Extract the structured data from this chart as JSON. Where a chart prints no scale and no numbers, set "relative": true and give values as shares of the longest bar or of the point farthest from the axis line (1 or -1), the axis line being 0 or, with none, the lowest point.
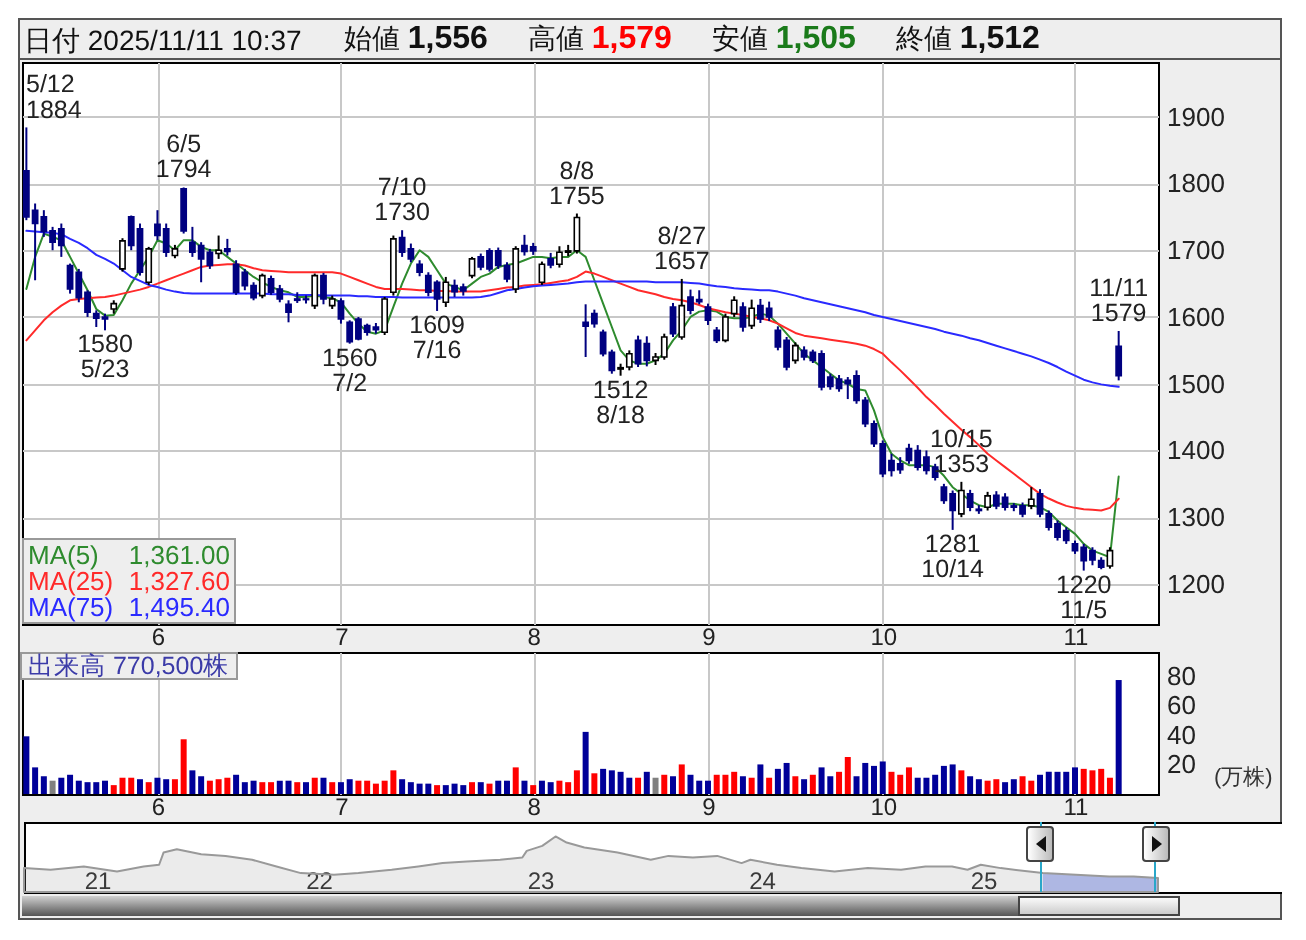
{
  "chart_data": [
    {
      "type": "candlestick",
      "title": "日付 2025/11/11 10:37",
      "subtitle": "始値 1,556 高値 1,579 安値 1,505 終値 1,512",
      "categories": [
        null,
        null,
        null,
        null,
        null,
        null,
        null,
        null,
        null,
        null,
        null,
        null,
        null,
        null,
        null,
        "6",
        null,
        null,
        null,
        null,
        null,
        null,
        null,
        null,
        null,
        null,
        null,
        null,
        null,
        null,
        null,
        null,
        null,
        null,
        null,
        null,
        "7",
        null,
        null,
        null,
        null,
        null,
        null,
        null,
        null,
        null,
        null,
        null,
        null,
        null,
        null,
        null,
        null,
        null,
        null,
        null,
        null,
        null,
        "8",
        null,
        null,
        null,
        null,
        null,
        null,
        null,
        null,
        null,
        null,
        null,
        null,
        null,
        null,
        null,
        null,
        null,
        null,
        null,
        "9",
        null,
        null,
        null,
        null,
        null,
        null,
        null,
        null,
        null,
        null,
        null,
        null,
        null,
        null,
        null,
        null,
        null,
        null,
        null,
        "10",
        null,
        null,
        null,
        null,
        null,
        null,
        null,
        null,
        null,
        null,
        null,
        null,
        null,
        null,
        null,
        null,
        null,
        null,
        null,
        null,
        null,
        "11",
        null,
        null,
        null,
        null,
        null
      ],
      "ohlc": [
        [
          1819,
          1884,
          1745,
          1750
        ],
        [
          1760,
          1770,
          1655,
          1740
        ],
        [
          1750,
          1760,
          1720,
          1728
        ],
        [
          1729,
          1735,
          1700,
          1712
        ],
        [
          1732,
          1740,
          1690,
          1707
        ],
        [
          1677,
          1680,
          1635,
          1642
        ],
        [
          1667,
          1672,
          1622,
          1629
        ],
        [
          1637,
          1640,
          1600,
          1607
        ],
        [
          1605,
          1610,
          1585,
          1598
        ],
        [
          1600,
          1605,
          1580,
          1597
        ],
        [
          1612,
          1625,
          1605,
          1620
        ],
        [
          1672,
          1718,
          1668,
          1714
        ],
        [
          1750,
          1752,
          1700,
          1707
        ],
        [
          1732,
          1740,
          1662,
          1667
        ],
        [
          1652,
          1705,
          1648,
          1702
        ],
        [
          1739,
          1760,
          1715,
          1722
        ],
        [
          1732,
          1740,
          1690,
          1697
        ],
        [
          1692,
          1708,
          1688,
          1702
        ],
        [
          1792,
          1794,
          1725,
          1729
        ],
        [
          1712,
          1735,
          1690,
          1697
        ],
        [
          1707,
          1712,
          1652,
          1687
        ],
        [
          1697,
          1702,
          1672,
          1677
        ],
        [
          1695,
          1722,
          1687,
          1700
        ],
        [
          1702,
          1717,
          1692,
          1698
        ],
        [
          1679,
          1685,
          1633,
          1637
        ],
        [
          1667,
          1672,
          1640,
          1647
        ],
        [
          1647,
          1652,
          1625,
          1629
        ],
        [
          1632,
          1665,
          1628,
          1662
        ],
        [
          1657,
          1662,
          1633,
          1637
        ],
        [
          1642,
          1648,
          1622,
          1627
        ],
        [
          1619,
          1625,
          1592,
          1607
        ],
        [
          1627,
          1637,
          1621,
          1625
        ],
        [
          1627,
          1632,
          1620,
          1626
        ],
        [
          1617,
          1665,
          1612,
          1662
        ],
        [
          1662,
          1666,
          1619,
          1627
        ],
        [
          1617,
          1632,
          1612,
          1627
        ],
        [
          1624,
          1628,
          1590,
          1597
        ],
        [
          1592,
          1595,
          1560,
          1563
        ],
        [
          1597,
          1600,
          1565,
          1567
        ],
        [
          1587,
          1590,
          1572,
          1577
        ],
        [
          1585,
          1591,
          1575,
          1581
        ],
        [
          1577,
          1630,
          1573,
          1627
        ],
        [
          1637,
          1722,
          1632,
          1717
        ],
        [
          1719,
          1730,
          1690,
          1697
        ],
        [
          1702,
          1710,
          1682,
          1687
        ],
        [
          1679,
          1685,
          1661,
          1667
        ],
        [
          1662,
          1667,
          1631,
          1637
        ],
        [
          1652,
          1655,
          1609,
          1627
        ],
        [
          1622,
          1660,
          1615,
          1652
        ],
        [
          1647,
          1656,
          1630,
          1638
        ],
        [
          1645,
          1650,
          1632,
          1639
        ],
        [
          1662,
          1690,
          1658,
          1687
        ],
        [
          1690,
          1695,
          1670,
          1675
        ],
        [
          1699,
          1703,
          1668,
          1672
        ],
        [
          1699,
          1704,
          1672,
          1677
        ],
        [
          1677,
          1682,
          1652,
          1657
        ],
        [
          1642,
          1706,
          1636,
          1702
        ],
        [
          1707,
          1723,
          1692,
          1698
        ],
        [
          1705,
          1711,
          1693,
          1699
        ],
        [
          1652,
          1683,
          1648,
          1679
        ],
        [
          1687,
          1696,
          1673,
          1678
        ],
        [
          1679,
          1706,
          1674,
          1697
        ],
        [
          1697,
          1708,
          1691,
          1699
        ],
        [
          1699,
          1755,
          1695,
          1749
        ],
        [
          1592,
          1619,
          1540,
          1586
        ],
        [
          1605,
          1611,
          1584,
          1590
        ],
        [
          1577,
          1581,
          1541,
          1545
        ],
        [
          1547,
          1551,
          1515,
          1520
        ],
        [
          1522,
          1530,
          1512,
          1524
        ],
        [
          1525,
          1550,
          1520,
          1545
        ],
        [
          1565,
          1572,
          1525,
          1530
        ],
        [
          1560,
          1571,
          1526,
          1535
        ],
        [
          1535,
          1546,
          1528,
          1540
        ],
        [
          1540,
          1575,
          1536,
          1570
        ],
        [
          1615,
          1621,
          1570,
          1575
        ],
        [
          1570,
          1657,
          1566,
          1617
        ],
        [
          1630,
          1641,
          1604,
          1610
        ],
        [
          1626,
          1640,
          1619,
          1623
        ],
        [
          1615,
          1620,
          1588,
          1595
        ],
        [
          1580,
          1585,
          1561,
          1565
        ],
        [
          1565,
          1605,
          1562,
          1600
        ],
        [
          1605,
          1631,
          1600,
          1625
        ],
        [
          1615,
          1622,
          1578,
          1585
        ],
        [
          1587,
          1626,
          1582,
          1613
        ],
        [
          1617,
          1627,
          1591,
          1597
        ],
        [
          1613,
          1623,
          1594,
          1600
        ],
        [
          1580,
          1586,
          1550,
          1555
        ],
        [
          1565,
          1570,
          1520,
          1525
        ],
        [
          1535,
          1562,
          1530,
          1557
        ],
        [
          1550,
          1556,
          1535,
          1540
        ],
        [
          1547,
          1551,
          1531,
          1535
        ],
        [
          1545,
          1550,
          1490,
          1495
        ],
        [
          1510,
          1515,
          1491,
          1496
        ],
        [
          1507,
          1513,
          1488,
          1493
        ],
        [
          1505,
          1510,
          1477,
          1500
        ],
        [
          1512,
          1520,
          1470,
          1475
        ],
        [
          1475,
          1480,
          1435,
          1440
        ],
        [
          1440,
          1445,
          1405,
          1410
        ],
        [
          1410,
          1415,
          1360,
          1365
        ],
        [
          1385,
          1395,
          1361,
          1370
        ],
        [
          1380,
          1390,
          1365,
          1371
        ],
        [
          1403,
          1410,
          1380,
          1385
        ],
        [
          1400,
          1408,
          1370,
          1375
        ],
        [
          1390,
          1400,
          1364,
          1370
        ],
        [
          1375,
          1380,
          1355,
          1360
        ],
        [
          1345,
          1350,
          1320,
          1325
        ],
        [
          1335,
          1340,
          1281,
          1310
        ],
        [
          1305,
          1353,
          1300,
          1340
        ],
        [
          1335,
          1341,
          1309,
          1315
        ],
        [
          1312,
          1318,
          1305,
          1310
        ],
        [
          1315,
          1338,
          1310,
          1332
        ],
        [
          1333,
          1339,
          1312,
          1317
        ],
        [
          1330,
          1336,
          1310,
          1315
        ],
        [
          1317,
          1321,
          1309,
          1315
        ],
        [
          1317,
          1322,
          1300,
          1305
        ],
        [
          1317,
          1345,
          1312,
          1327
        ],
        [
          1335,
          1342,
          1300,
          1305
        ],
        [
          1305,
          1310,
          1280,
          1285
        ],
        [
          1290,
          1295,
          1265,
          1270
        ],
        [
          1280,
          1285,
          1260,
          1265
        ],
        [
          1260,
          1265,
          1245,
          1250
        ],
        [
          1255,
          1260,
          1220,
          1235
        ],
        [
          1250,
          1255,
          1228,
          1236
        ],
        [
          1235,
          1240,
          1222,
          1225
        ],
        [
          1227,
          1255,
          1223,
          1250
        ],
        [
          1556,
          1579,
          1505,
          1512
        ]
      ],
      "series": [
        {
          "name": "MA(5)",
          "type": "line",
          "color": "#2e8b2e",
          "values": [
            1642,
            1690,
            1725,
            1720,
            1715,
            1690,
            1665,
            1640,
            1612,
            1602,
            1603,
            1625,
            1650,
            1670,
            1690,
            1715,
            1710,
            1700,
            1715,
            1715,
            1705,
            1700,
            1700,
            1690,
            1680,
            1670,
            1660,
            1652,
            1645,
            1640,
            1637,
            1630,
            1630,
            1632,
            1630,
            1628,
            1622,
            1605,
            1590,
            1578,
            1575,
            1580,
            1615,
            1650,
            1680,
            1700,
            1690,
            1670,
            1650,
            1645,
            1640,
            1650,
            1660,
            1665,
            1675,
            1678,
            1680,
            1685,
            1690,
            1690,
            1688,
            1690,
            1690,
            1700,
            1690,
            1655,
            1620,
            1585,
            1550,
            1535,
            1530,
            1530,
            1535,
            1545,
            1565,
            1580,
            1600,
            1608,
            1610,
            1608,
            1600,
            1598,
            1598,
            1600,
            1605,
            1602,
            1590,
            1575,
            1560,
            1545,
            1535,
            1525,
            1515,
            1505,
            1500,
            1492,
            1490,
            1460,
            1420,
            1395,
            1385,
            1378,
            1378,
            1378,
            1375,
            1362,
            1345,
            1335,
            1325,
            1318,
            1315,
            1320,
            1320,
            1320,
            1318,
            1318,
            1315,
            1308,
            1295,
            1285,
            1275,
            1260,
            1250,
            1245,
            1240,
            1361
          ]
        },
        {
          "name": "MA(25)",
          "type": "line",
          "color": "#ff2a2a",
          "values": [
            1565,
            1580,
            1595,
            1607,
            1617,
            1625,
            1627,
            1628,
            1629,
            1630,
            1632,
            1635,
            1638,
            1641,
            1645,
            1650,
            1655,
            1660,
            1665,
            1670,
            1675,
            1677,
            1678,
            1679,
            1679,
            1677,
            1673,
            1670,
            1669,
            1668,
            1667,
            1667,
            1667,
            1667,
            1667,
            1667,
            1665,
            1660,
            1655,
            1650,
            1645,
            1642,
            1642,
            1642,
            1641,
            1640,
            1640,
            1639,
            1639,
            1638,
            1638,
            1638,
            1638,
            1640,
            1642,
            1644,
            1645,
            1647,
            1648,
            1649,
            1651,
            1653,
            1655,
            1660,
            1668,
            1665,
            1660,
            1655,
            1650,
            1645,
            1640,
            1637,
            1634,
            1630,
            1627,
            1625,
            1622,
            1618,
            1613,
            1610,
            1607,
            1605,
            1603,
            1600,
            1598,
            1595,
            1590,
            1583,
            1576,
            1572,
            1570,
            1568,
            1566,
            1564,
            1562,
            1560,
            1557,
            1552,
            1545,
            1532,
            1520,
            1507,
            1494,
            1480,
            1468,
            1455,
            1443,
            1431,
            1420,
            1408,
            1395,
            1385,
            1375,
            1365,
            1355,
            1345,
            1335,
            1328,
            1322,
            1317,
            1314,
            1312,
            1311,
            1310,
            1314,
            1327.6
          ]
        },
        {
          "name": "MA(75)",
          "type": "line",
          "color": "#2a2aff",
          "values": [
            1729,
            1728,
            1727,
            1726,
            1724,
            1717,
            1711,
            1703,
            1693,
            1687,
            1680,
            1670,
            1660,
            1654,
            1648,
            1645,
            1641,
            1638,
            1636,
            1635,
            1635,
            1635,
            1635,
            1635,
            1635,
            1635,
            1635,
            1635,
            1634,
            1634,
            1634,
            1633,
            1633,
            1633,
            1632,
            1632,
            1632,
            1632,
            1631,
            1631,
            1630,
            1630,
            1630,
            1629,
            1629,
            1629,
            1629,
            1629,
            1629,
            1629,
            1629,
            1629,
            1630,
            1632,
            1636,
            1640,
            1642,
            1644,
            1646,
            1647,
            1648,
            1649,
            1650,
            1652,
            1653,
            1653,
            1653,
            1653,
            1653,
            1653,
            1653,
            1653,
            1652,
            1652,
            1652,
            1652,
            1651,
            1650,
            1648,
            1646,
            1645,
            1643,
            1642,
            1641,
            1640,
            1640,
            1638,
            1635,
            1632,
            1628,
            1625,
            1622,
            1619,
            1616,
            1613,
            1610,
            1607,
            1603,
            1600,
            1597,
            1594,
            1591,
            1588,
            1585,
            1582,
            1578,
            1575,
            1572,
            1568,
            1565,
            1561,
            1557,
            1553,
            1549,
            1545,
            1541,
            1536,
            1531,
            1525,
            1518,
            1512,
            1506,
            1502,
            1499,
            1497,
            1495.4
          ]
        }
      ],
      "ylim": [
        1140,
        1982
      ],
      "yticks": [
        1200,
        1300,
        1400,
        1500,
        1600,
        1700,
        1800,
        1900
      ],
      "grid": true,
      "legend": "bottom left",
      "annotations": [
        "5/12\n1884",
        {
          "text": "1580\n5/23",
          "y": 1580
        },
        {
          "text": "6/5\n1794",
          "y": 1794
        },
        {
          "text": "1560\n7/2",
          "y": 1560
        },
        {
          "text": "7/10\n1730",
          "y": 1730
        },
        {
          "text": "1609\n7/16",
          "y": 1609
        },
        {
          "text": "8/8\n1755",
          "y": 1755
        },
        {
          "text": "1512\n8/18",
          "y": 1512
        },
        {
          "text": "8/27\n1657",
          "y": 1657
        },
        {
          "text": "1281\n10/14",
          "y": 1281
        },
        {
          "text": "10/15\n1353",
          "y": 1353
        },
        {
          "text": "1220\n11/5",
          "y": 1220
        },
        {
          "text": "11/11\n1579",
          "y": 1579
        },
        "1,361.00",
        "1,327.60",
        "1,495.40"
      ]
    },
    {
      "type": "bar",
      "title": "出来高 770,500株",
      "ylabel": "(万株)",
      "categories": [
        null,
        null,
        null,
        null,
        null,
        null,
        null,
        null,
        null,
        null,
        null,
        null,
        null,
        null,
        null,
        "6",
        null,
        null,
        null,
        null,
        null,
        null,
        null,
        null,
        null,
        null,
        null,
        null,
        null,
        null,
        null,
        null,
        null,
        null,
        null,
        null,
        "7",
        null,
        null,
        null,
        null,
        null,
        null,
        null,
        null,
        null,
        null,
        null,
        null,
        null,
        null,
        null,
        null,
        null,
        null,
        null,
        null,
        null,
        "8",
        null,
        null,
        null,
        null,
        null,
        null,
        null,
        null,
        null,
        null,
        null,
        null,
        null,
        null,
        null,
        null,
        null,
        null,
        null,
        "9",
        null,
        null,
        null,
        null,
        null,
        null,
        null,
        null,
        null,
        null,
        null,
        null,
        null,
        null,
        null,
        null,
        null,
        null,
        null,
        "10",
        null,
        null,
        null,
        null,
        null,
        null,
        null,
        null,
        null,
        null,
        null,
        null,
        null,
        null,
        null,
        null,
        null,
        null,
        null,
        null,
        null,
        "11",
        null,
        null,
        null,
        null,
        null
      ],
      "values": [
        39,
        18,
        12,
        9,
        11,
        13,
        9,
        8,
        8,
        9,
        6,
        11,
        11,
        10,
        8,
        11,
        10,
        10,
        37,
        16,
        12,
        9,
        10,
        11,
        13,
        8,
        9,
        8,
        8,
        9,
        9,
        8,
        8,
        11,
        11,
        8,
        8,
        10,
        9,
        9,
        7,
        9,
        16,
        10,
        8,
        7,
        7,
        6,
        6,
        7,
        6,
        8,
        8,
        7,
        9,
        9,
        18,
        9,
        6,
        9,
        8,
        9,
        8,
        16,
        42,
        14,
        17,
        16,
        15,
        11,
        11,
        15,
        11,
        13,
        12,
        20,
        13,
        9,
        9,
        13,
        13,
        15,
        12,
        11,
        20,
        11,
        17,
        21,
        12,
        10,
        13,
        18,
        12,
        15,
        25,
        12,
        21,
        19,
        22,
        15,
        13,
        18,
        11,
        11,
        13,
        19,
        20,
        16,
        12,
        10,
        9,
        10,
        8,
        10,
        12,
        9,
        13,
        15,
        15,
        15,
        18,
        17,
        16,
        17,
        11,
        77.05
      ],
      "colors": [
        "#000099",
        "#000099",
        "#000099",
        "#808080",
        "#000099",
        "#000099",
        "#000099",
        "#000099",
        "#000099",
        "#000099",
        "#ff0000",
        "#ff0000",
        "#ff0000",
        "#000099",
        "#ff0000",
        "#000099",
        "#000099",
        "#ff0000",
        "#ff0000",
        "#000099",
        "#000099",
        "#ff0000",
        "#ff0000",
        "#ff0000",
        "#000099",
        "#000099",
        "#000099",
        "#ff0000",
        "#ff0000",
        "#000099",
        "#000099",
        "#ff0000",
        "#000099",
        "#ff0000",
        "#000099",
        "#ff0000",
        "#000099",
        "#000099",
        "#ff0000",
        "#ff0000",
        "#ff0000",
        "#ff0000",
        "#ff0000",
        "#000099",
        "#000099",
        "#000099",
        "#000099",
        "#ff0000",
        "#000099",
        "#000099",
        "#000099",
        "#ff0000",
        "#000099",
        "#ff0000",
        "#000099",
        "#000099",
        "#ff0000",
        "#000099",
        "#ff0000",
        "#000099",
        "#000099",
        "#ff0000",
        "#ff0000",
        "#ff0000",
        "#000099",
        "#ff0000",
        "#000099",
        "#000099",
        "#000099",
        "#000099",
        "#ff0000",
        "#000099",
        "#808080",
        "#ff0000",
        "#000099",
        "#ff0000",
        "#000099",
        "#000099",
        "#000099",
        "#ff0000",
        "#ff0000",
        "#ff0000",
        "#000099",
        "#ff0000",
        "#000099",
        "#ff0000",
        "#000099",
        "#000099",
        "#ff0000",
        "#000099",
        "#ff0000",
        "#000099",
        "#000099",
        "#ff0000",
        "#ff0000",
        "#000099",
        "#000099",
        "#000099",
        "#000099",
        "#ff0000",
        "#ff0000",
        "#ff0000",
        "#000099",
        "#000099",
        "#000099",
        "#000099",
        "#000099",
        "#ff0000",
        "#000099",
        "#000099",
        "#ff0000",
        "#ff0000",
        "#000099",
        "#000099",
        "#ff0000",
        "#ff0000",
        "#000099",
        "#000099",
        "#000099",
        "#000099",
        "#000099",
        "#ff0000",
        "#ff0000",
        "#ff0000",
        "#ff0000",
        "#000099"
      ],
      "ylim": [
        0,
        96
      ],
      "yticks": [
        20,
        40,
        60,
        80
      ],
      "grid": "x"
    },
    {
      "type": "area",
      "relative": true,
      "x": [
        2020.67,
        2020.79,
        2020.94,
        2021.09,
        2021.21,
        2021.28,
        2021.3,
        2021.36,
        2021.47,
        2021.58,
        2021.7,
        2021.81,
        2021.92,
        2022.07,
        2022.18,
        2022.33,
        2022.45,
        2022.56,
        2022.67,
        2022.82,
        2022.92,
        2022.94,
        2023.01,
        2023.07,
        2023.12,
        2023.2,
        2023.35,
        2023.5,
        2023.58,
        2023.69,
        2023.8,
        2023.91,
        2023.95,
        2024.07,
        2024.18,
        2024.33,
        2024.48,
        2024.63,
        2024.74,
        2024.86,
        2024.93,
        2024.99,
        2025.08,
        2025.27,
        2025.42,
        2025.57,
        2025.68,
        2025.79
      ],
      "series": [
        {
          "color": "#999999",
          "values": [
            0.43,
            0.4,
            0.46,
            0.37,
            0.46,
            0.49,
            0.71,
            0.77,
            0.68,
            0.65,
            0.58,
            0.46,
            0.34,
            0.31,
            0.34,
            0.4,
            0.46,
            0.52,
            0.55,
            0.58,
            0.62,
            0.74,
            0.83,
            1,
            0.89,
            0.8,
            0.71,
            0.58,
            0.65,
            0.62,
            0.65,
            0.52,
            0.58,
            0.49,
            0.43,
            0.37,
            0.43,
            0.4,
            0.46,
            0.46,
            0.4,
            0.49,
            0.43,
            0.34,
            0.31,
            0.28,
            0.28,
            0.25
          ]
        }
      ],
      "xlim": [
        2020.67,
        2026.35
      ],
      "xticks": [
        {
          "value": 2021,
          "label": "21"
        },
        {
          "value": 2022,
          "label": "22"
        },
        {
          "value": 2023,
          "label": "23"
        },
        {
          "value": 2024,
          "label": "24"
        },
        {
          "value": 2025,
          "label": "25"
        }
      ],
      "bands": [
        {
          "axis": "x",
          "from": 2025.27,
          "to": 2025.79,
          "color": "#b3bff5"
        }
      ]
    }
  ]
}
